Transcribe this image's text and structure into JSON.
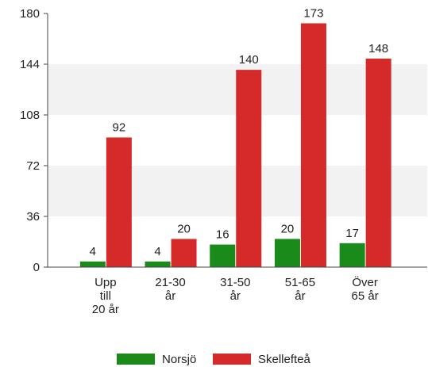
{
  "chart_data": {
    "type": "bar",
    "categories": [
      "Upp\ntill\n20 år",
      "21-30\når",
      "31-50\når",
      "51-65\når",
      "Över\n65 år"
    ],
    "series": [
      {
        "name": "Norsjö",
        "color": "#1a8a1a",
        "values": [
          4,
          4,
          16,
          20,
          17
        ]
      },
      {
        "name": "Skellefteå",
        "color": "#d42a2a",
        "values": [
          92,
          20,
          140,
          173,
          148
        ]
      }
    ],
    "ylim": [
      0,
      180
    ],
    "yticks": [
      0,
      36,
      72,
      108,
      144,
      180
    ],
    "grid": true,
    "legend": "bottom"
  }
}
